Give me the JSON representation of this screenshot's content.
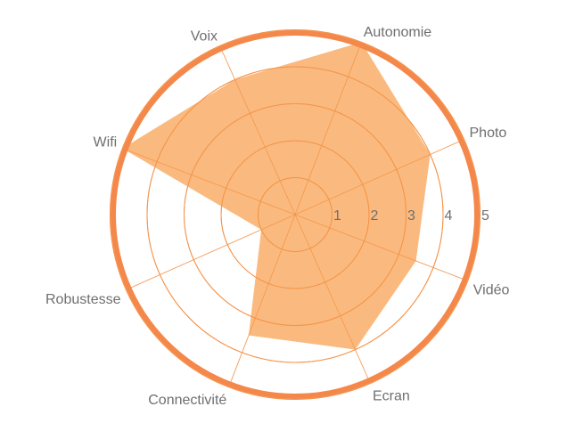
{
  "chart_data": {
    "type": "radar",
    "categories": [
      "Autonomie",
      "Photo",
      "Vidéo",
      "Ecran",
      "Connectivité",
      "Robustesse",
      "Wifi",
      "Voix"
    ],
    "values": [
      5,
      4,
      3.5,
      4,
      3.5,
      1,
      5,
      4
    ],
    "rlim": [
      0,
      5
    ],
    "ticks": [
      1,
      2,
      3,
      4,
      5
    ],
    "grid": true,
    "colors": {
      "fill": "#f8a04e",
      "fill_opacity": 0.72,
      "grid": "#f4934a",
      "outer_ring": "#f4884a",
      "text": "#6f6f6f"
    }
  }
}
